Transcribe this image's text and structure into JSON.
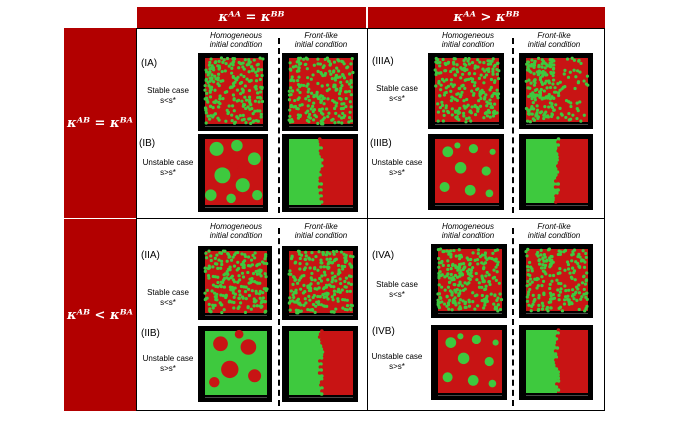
{
  "columns": {
    "equal": "κᴬᴬ = κᴮᴮ",
    "greater": "κᴬᴬ > κᴮᴮ"
  },
  "rows": {
    "equal": "κᴬᴮ = κᴮᴬ",
    "less": "κᴬᴮ < κᴮᴬ"
  },
  "subcols": {
    "homogeneous": "Homogeneous initial condition",
    "homogeneous_l1": "Homogeneous",
    "homogeneous_l2": "initial condition",
    "front_l1": "Front-like",
    "front_l2": "initial condition"
  },
  "labels": {
    "IA": "(IA)",
    "IB": "(IB)",
    "IIA": "(IIA)",
    "IIB": "(IIB)",
    "IIIA": "(IIIA)",
    "IIIB": "(IIIB)",
    "IVA": "(IVA)",
    "IVB": "(IVB)"
  },
  "cases": {
    "stable_l1": "Stable case",
    "stable_l2": "s<s*",
    "unstable_l1": "Unstable case",
    "unstable_l2": "s>s*"
  },
  "colors": {
    "header_red": "#b20000",
    "green": "#3ec93e",
    "red": "#c81414",
    "panel_bg": "#000000"
  }
}
